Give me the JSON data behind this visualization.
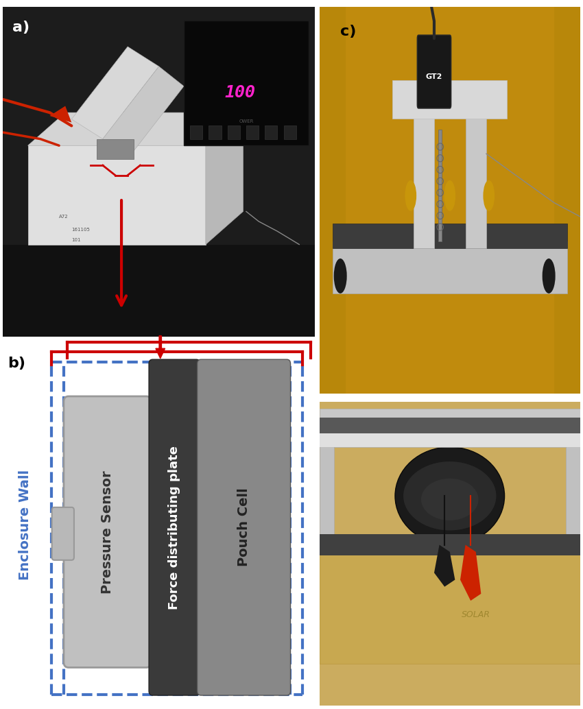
{
  "fig_width": 8.5,
  "fig_height": 10.34,
  "bg_color": "#ffffff",
  "label_a": "a)",
  "label_b": "b)",
  "label_c": "c)",
  "label_fontsize": 16,
  "label_fontweight": "bold",
  "enclosure_label": "Enclosure Wall",
  "enclosure_label_color": "#4472C4",
  "enclosure_label_fontsize": 14,
  "pressure_sensor_label": "Pressure Sensor",
  "force_plate_label": "Force distributing plate",
  "pouch_cell_label": "Pouch Cell",
  "pressure_sensor_color": "#c0c0c0",
  "pressure_sensor_edge": "#999999",
  "force_plate_color": "#3a3a3a",
  "pouch_cell_color": "#888888",
  "dashed_border_color": "#4472C4",
  "arrow_color": "#cc0000",
  "bracket_color": "#cc0000",
  "diagram_bg": "#ffffff",
  "photo_a_bg": "#1c1c1c",
  "photo_a_table": "#151515",
  "photo_a_box_top": "#a8a8a8",
  "photo_a_box_front": "#b8b8b8",
  "photo_a_box_side": "#888888",
  "photo_a_plate_color": "#d8d8d8",
  "photo_a_display_bg": "#0a0a0a",
  "photo_a_display_text_color": "#ff22bb",
  "photo_a_red_cable": "#cc2200",
  "photo_c_bg_top": "#c8960a",
  "photo_c_bg_bottom": "#d4a830",
  "photo_c_platform_color": "#c8c8c8",
  "photo_c_dark_plate": "#404040",
  "photo_c_gt2_body": "#1a1a1a",
  "photo_c_wood_color": "#c8a860",
  "photo_c_frame_color": "#d0d0d0",
  "nub_color": "#b8b8b8",
  "nub_edge": "#999999",
  "connector_nub_color": "#c0c0c0"
}
